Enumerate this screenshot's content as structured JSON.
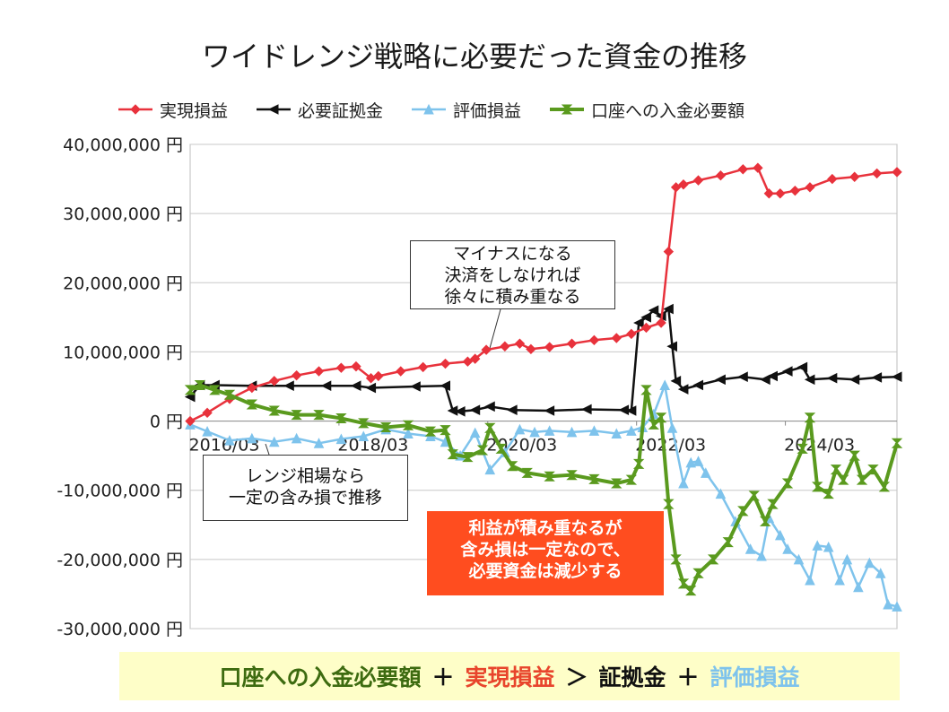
{
  "chart_data": {
    "type": "line",
    "title": "ワイドレンジ戦略に必要だった資金の推移",
    "ylim": [
      -30000000,
      40000000
    ],
    "y_ticks": [
      40000000,
      30000000,
      20000000,
      10000000,
      0,
      -10000000,
      -20000000,
      -30000000
    ],
    "y_tick_labels": [
      "40,000,000 円",
      "30,000,000 円",
      "20,000,000 円",
      "10,000,000 円",
      "0 円",
      "-10,000,000 円",
      "-20,000,000 円",
      "-30,000,000 円"
    ],
    "x_tick_labels": [
      "2016/03",
      "2018/03",
      "2020/03",
      "2022/03",
      "2024/03"
    ],
    "x_ticks": [
      2016.17,
      2018.17,
      2020.17,
      2022.17,
      2024.17
    ],
    "xlim": [
      2016.17,
      2025.67
    ],
    "grid": true,
    "legend_position": "top",
    "series": [
      {
        "name": "実現損益",
        "color": "#e8323c",
        "marker": "diamond",
        "x": [
          2016.17,
          2016.4,
          2016.7,
          2017.0,
          2017.3,
          2017.6,
          2017.9,
          2018.2,
          2018.4,
          2018.6,
          2018.7,
          2019.0,
          2019.3,
          2019.6,
          2019.9,
          2020.0,
          2020.15,
          2020.4,
          2020.6,
          2020.75,
          2021.0,
          2021.3,
          2021.6,
          2021.9,
          2022.1,
          2022.3,
          2022.5,
          2022.6,
          2022.7,
          2022.8,
          2023.0,
          2023.3,
          2023.6,
          2023.8,
          2023.95,
          2024.1,
          2024.3,
          2024.5,
          2024.8,
          2025.1,
          2025.4,
          2025.67
        ],
        "y": [
          0,
          1200000,
          3200000,
          4800000,
          5800000,
          6600000,
          7200000,
          7700000,
          7900000,
          6200000,
          6500000,
          7200000,
          7800000,
          8300000,
          8600000,
          9000000,
          10300000,
          10800000,
          11200000,
          10400000,
          10700000,
          11200000,
          11700000,
          12000000,
          12600000,
          13500000,
          14200000,
          24500000,
          33800000,
          34200000,
          34800000,
          35500000,
          36400000,
          36600000,
          32900000,
          32900000,
          33300000,
          33800000,
          35000000,
          35300000,
          35800000,
          36000000
        ]
      },
      {
        "name": "必要証拠金",
        "color": "#111111",
        "marker": "triangle-left",
        "x": [
          2016.17,
          2016.3,
          2016.5,
          2017.0,
          2017.5,
          2018.0,
          2018.4,
          2018.6,
          2019.2,
          2019.6,
          2019.7,
          2019.8,
          2020.0,
          2020.2,
          2020.5,
          2021.0,
          2021.5,
          2022.0,
          2022.1,
          2022.2,
          2022.3,
          2022.4,
          2022.5,
          2022.6,
          2022.65,
          2022.7,
          2022.8,
          2023.0,
          2023.3,
          2023.6,
          2023.9,
          2024.0,
          2024.2,
          2024.4,
          2024.5,
          2024.8,
          2025.1,
          2025.4,
          2025.67
        ],
        "y": [
          3500000,
          5200000,
          5200000,
          5100000,
          5100000,
          5100000,
          5100000,
          4800000,
          5000000,
          5100000,
          1500000,
          1400000,
          1600000,
          2100000,
          1600000,
          1500000,
          1700000,
          1600000,
          1500000,
          14200000,
          15000000,
          16000000,
          15200000,
          16200000,
          10800000,
          5800000,
          4600000,
          5200000,
          6000000,
          6400000,
          6000000,
          6500000,
          7200000,
          7800000,
          6000000,
          6200000,
          6000000,
          6300000,
          6400000
        ]
      },
      {
        "name": "評価損益",
        "color": "#7ec3ec",
        "marker": "triangle-up",
        "x": [
          2016.17,
          2016.4,
          2016.7,
          2017.0,
          2017.3,
          2017.6,
          2017.9,
          2018.2,
          2018.5,
          2018.8,
          2019.1,
          2019.4,
          2019.6,
          2019.8,
          2020.0,
          2020.2,
          2020.4,
          2020.6,
          2020.8,
          2021.0,
          2021.3,
          2021.6,
          2021.9,
          2022.1,
          2022.25,
          2022.4,
          2022.55,
          2022.65,
          2022.8,
          2022.9,
          2023.0,
          2023.1,
          2023.3,
          2023.5,
          2023.7,
          2023.85,
          2023.95,
          2024.1,
          2024.2,
          2024.35,
          2024.5,
          2024.6,
          2024.75,
          2024.9,
          2025.0,
          2025.15,
          2025.3,
          2025.45,
          2025.55,
          2025.67
        ],
        "y": [
          -500000,
          -1500000,
          -2800000,
          -2500000,
          -3000000,
          -2500000,
          -3200000,
          -2600000,
          -2200000,
          -1200000,
          -1800000,
          -2200000,
          -3000000,
          -5000000,
          -1700000,
          -7000000,
          -4500000,
          -1200000,
          -1600000,
          -1400000,
          -1600000,
          -1400000,
          -1800000,
          -1400000,
          -900000,
          1000000,
          5200000,
          -1000000,
          -9000000,
          -6000000,
          -5800000,
          -7500000,
          -10500000,
          -14500000,
          -18500000,
          -19500000,
          -14000000,
          -16500000,
          -18500000,
          -20000000,
          -23000000,
          -18000000,
          -18200000,
          -23000000,
          -20000000,
          -24000000,
          -20500000,
          -22000000,
          -26500000,
          -26800000
        ]
      },
      {
        "name": "口座への入金必要額",
        "color": "#5a9a1e",
        "marker": "bowtie",
        "x": [
          2016.17,
          2016.3,
          2016.5,
          2016.7,
          2017.0,
          2017.3,
          2017.6,
          2017.9,
          2018.2,
          2018.5,
          2018.8,
          2019.1,
          2019.4,
          2019.6,
          2019.7,
          2019.9,
          2020.1,
          2020.2,
          2020.35,
          2020.5,
          2020.7,
          2021.0,
          2021.3,
          2021.6,
          2021.9,
          2022.1,
          2022.2,
          2022.3,
          2022.4,
          2022.5,
          2022.6,
          2022.7,
          2022.8,
          2022.9,
          2023.0,
          2023.2,
          2023.4,
          2023.6,
          2023.75,
          2023.9,
          2024.0,
          2024.2,
          2024.4,
          2024.5,
          2024.6,
          2024.75,
          2024.85,
          2024.95,
          2025.1,
          2025.2,
          2025.35,
          2025.5,
          2025.67
        ],
        "y": [
          4500000,
          5200000,
          4500000,
          3800000,
          2400000,
          1500000,
          900000,
          900000,
          400000,
          -300000,
          -900000,
          -600000,
          -1500000,
          -1300000,
          -4800000,
          -5200000,
          -4200000,
          -1000000,
          -4000000,
          -6500000,
          -7500000,
          -8000000,
          -7800000,
          -8400000,
          -9000000,
          -8500000,
          -6200000,
          4500000,
          -500000,
          500000,
          -12000000,
          -20000000,
          -23500000,
          -24500000,
          -22000000,
          -20000000,
          -17500000,
          -13000000,
          -10800000,
          -14500000,
          -12000000,
          -9000000,
          -4000000,
          500000,
          -9500000,
          -10500000,
          -7000000,
          -8500000,
          -5000000,
          -8500000,
          -7000000,
          -9500000,
          -3200000
        ]
      }
    ]
  },
  "callouts": {
    "minus_settle": [
      "マイナスになる",
      "決済をしなければ",
      "徐々に積み重なる"
    ],
    "range_market": [
      "レンジ相場なら",
      "一定の含み損で推移"
    ],
    "profit_note": [
      "利益が積み重なるが",
      "含み損は一定なので、",
      "必要資金は減少する"
    ]
  },
  "formula": {
    "term1": "口座への入金必要額",
    "op1": "＋",
    "term2": "実現損益",
    "op2": "＞",
    "term3": "証拠金",
    "op3": "＋",
    "term4": "評価損益",
    "colors": {
      "term1": "#3d6b10",
      "term2": "#e8452c",
      "term3": "#111111",
      "term4": "#7ec3ec"
    }
  }
}
